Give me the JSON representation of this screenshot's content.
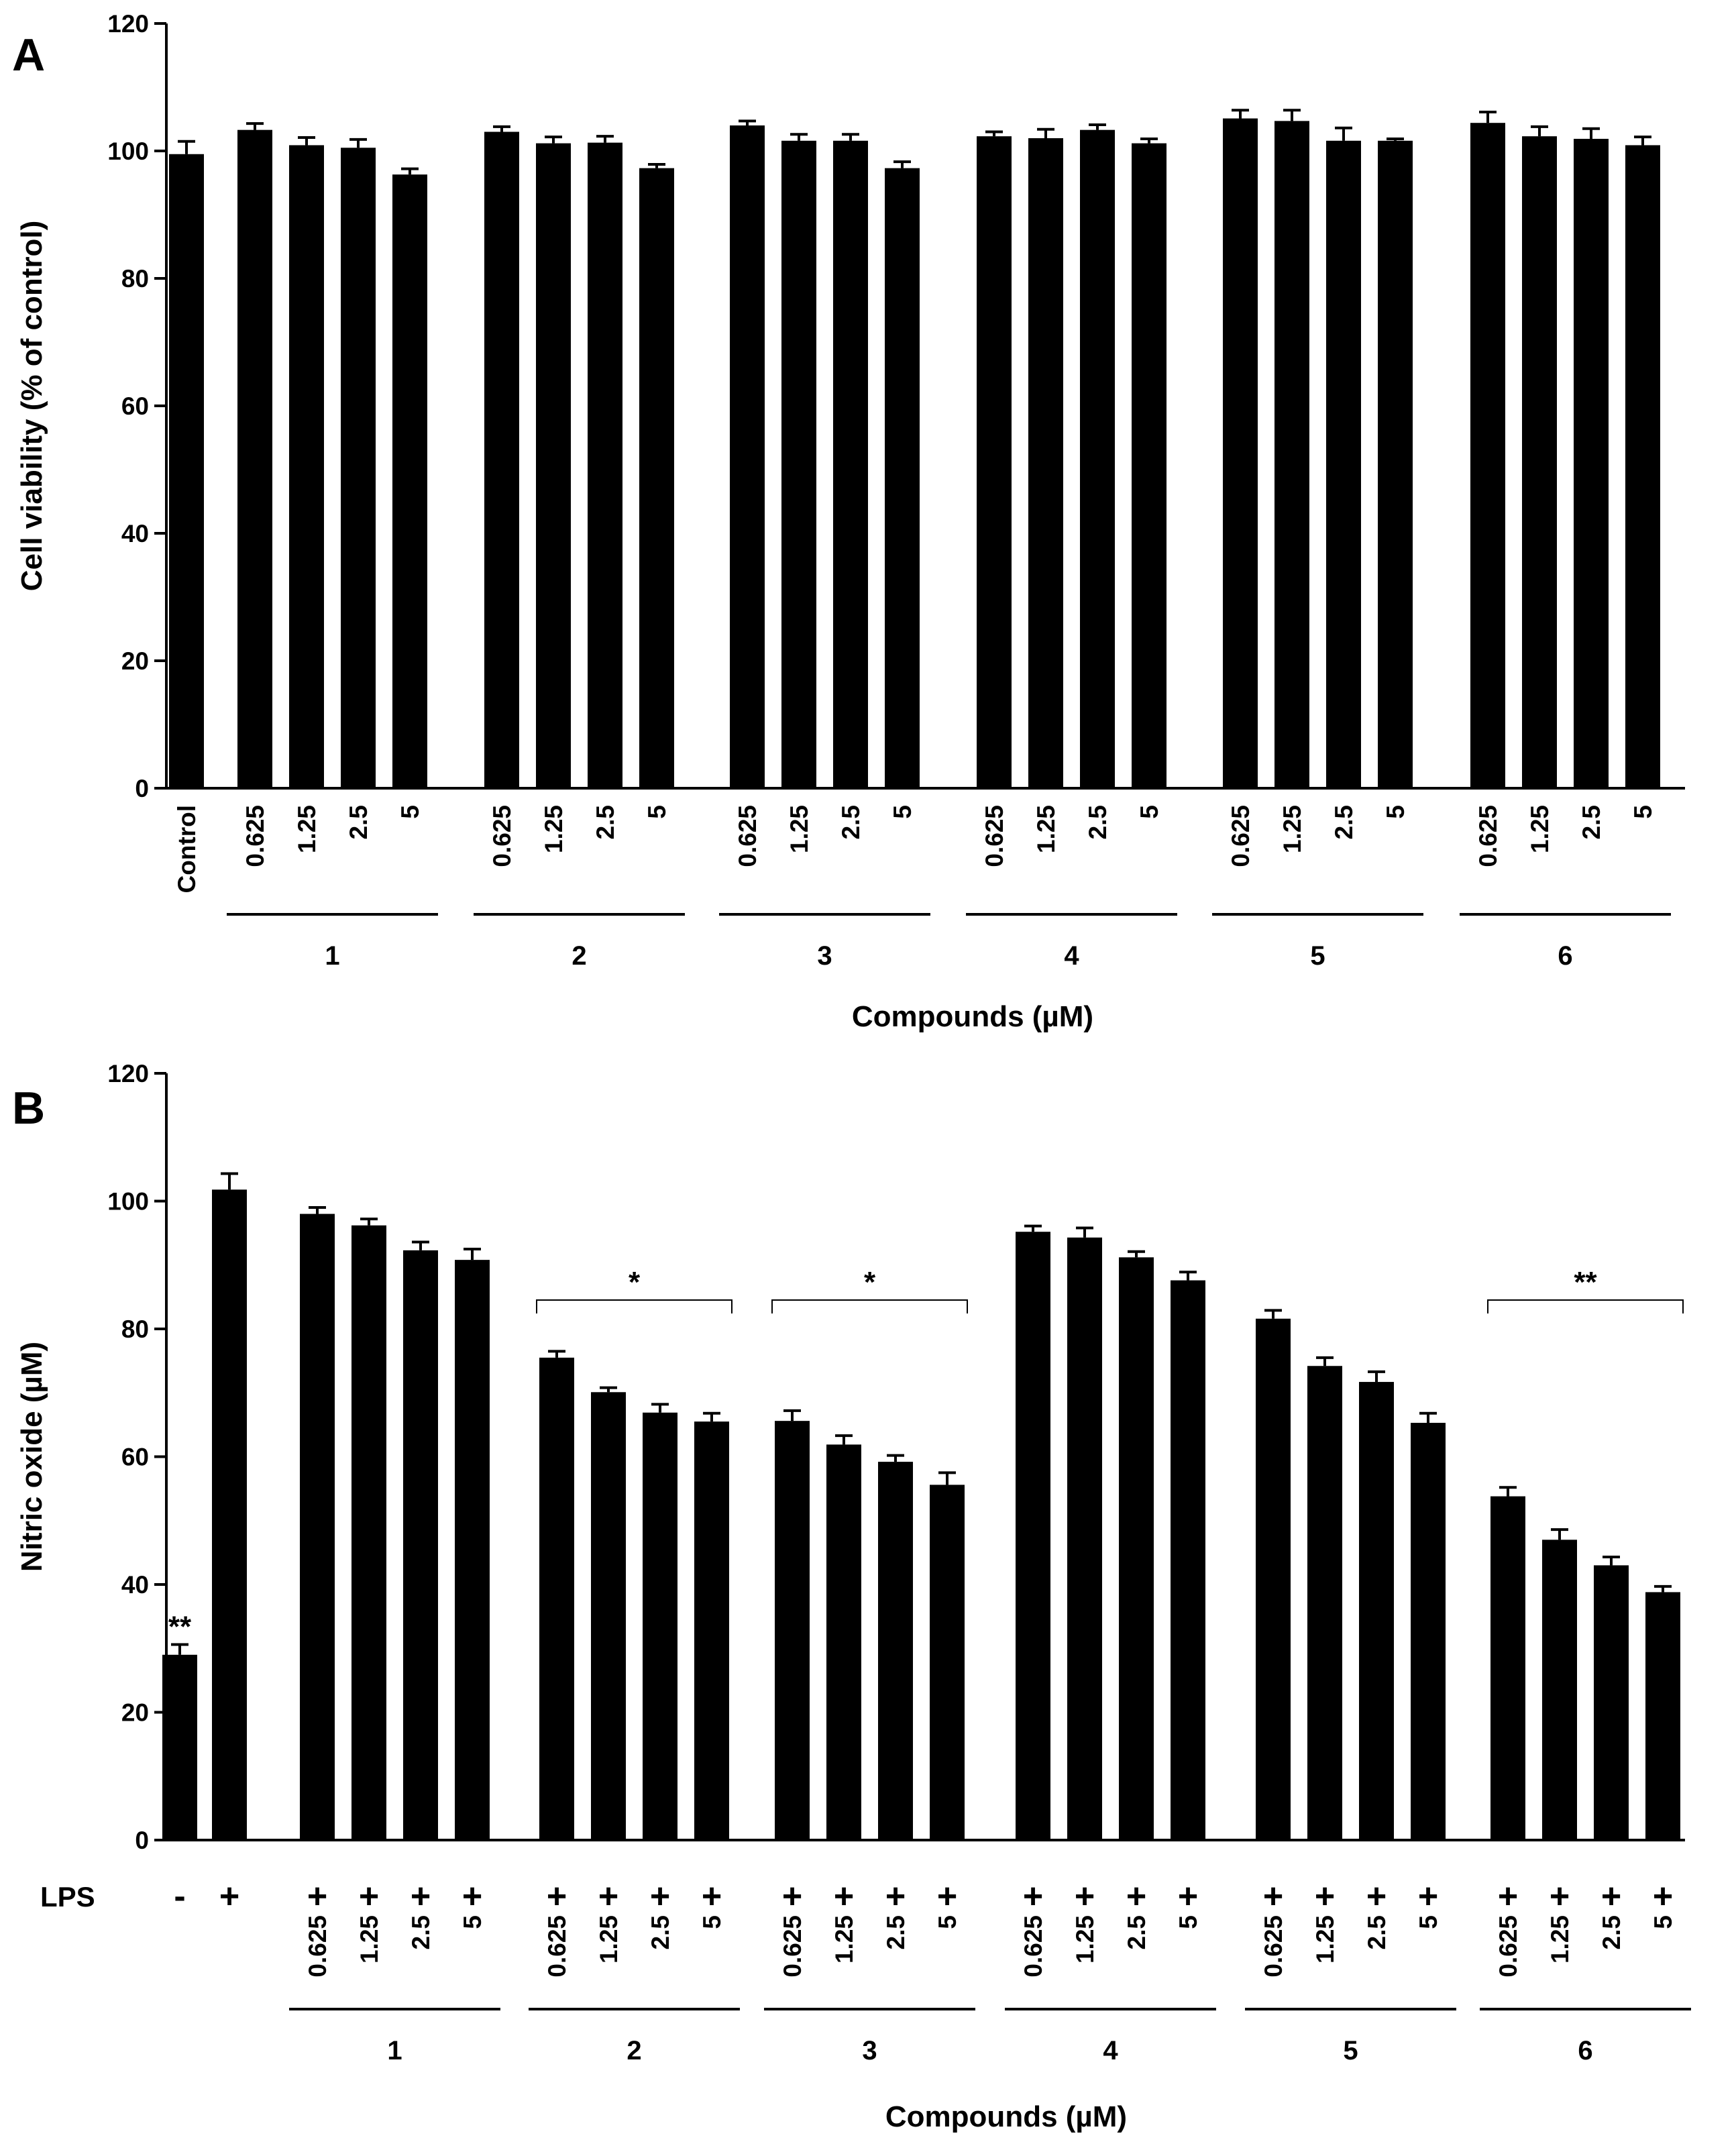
{
  "chart_data": [
    {
      "panel": "A",
      "type": "bar",
      "title": "",
      "xlabel": "Compounds (µM)",
      "ylabel": "Cell viability (% of control)",
      "ylim": [
        0,
        120
      ],
      "yticks": [
        "0",
        "20",
        "40",
        "60",
        "80",
        "100",
        "120"
      ],
      "grid": false,
      "legend": "none",
      "error_bars": "SEM, upper only",
      "control_label": "Control",
      "group_names": [
        "1",
        "2",
        "3",
        "4",
        "5",
        "6"
      ],
      "concentrations": [
        "0.625",
        "1.25",
        "2.5",
        "5"
      ],
      "control": {
        "value": 99.5,
        "error": 2.0
      },
      "groups": [
        {
          "name": "1",
          "values": [
            103.3,
            100.9,
            100.5,
            96.3
          ],
          "errors": [
            1.0,
            1.2,
            1.3,
            0.9
          ]
        },
        {
          "name": "2",
          "values": [
            103.0,
            101.2,
            101.3,
            97.3
          ],
          "errors": [
            0.8,
            1.0,
            1.0,
            0.6
          ]
        },
        {
          "name": "3",
          "values": [
            104.0,
            101.6,
            101.6,
            97.3
          ],
          "errors": [
            0.7,
            1.0,
            1.0,
            1.0
          ]
        },
        {
          "name": "4",
          "values": [
            102.3,
            102.0,
            103.3,
            101.2
          ],
          "errors": [
            0.7,
            1.4,
            0.8,
            0.7
          ]
        },
        {
          "name": "5",
          "values": [
            105.1,
            104.7,
            101.6,
            101.6
          ],
          "errors": [
            1.3,
            1.7,
            2.0,
            0.3
          ]
        },
        {
          "name": "6",
          "values": [
            104.4,
            102.3,
            101.9,
            100.9
          ],
          "errors": [
            1.7,
            1.5,
            1.6,
            1.3
          ]
        }
      ]
    },
    {
      "panel": "B",
      "type": "bar",
      "title": "",
      "xlabel": "Compounds (µM)",
      "ylabel": "Nitric oxide (µM)",
      "ylim": [
        0,
        120
      ],
      "yticks": [
        "0",
        "20",
        "40",
        "60",
        "80",
        "100",
        "120"
      ],
      "grid": false,
      "legend": "none",
      "error_bars": "SEM, upper only",
      "row_label": "LPS",
      "minus_label": "-",
      "plus_label": "+",
      "group_names": [
        "1",
        "2",
        "3",
        "4",
        "5",
        "6"
      ],
      "concentrations": [
        "0.625",
        "1.25",
        "2.5",
        "5"
      ],
      "lps_negative": {
        "value": 29.0,
        "error": 1.6,
        "significance": "**"
      },
      "lps_positive": {
        "value": 101.8,
        "error": 2.5,
        "significance": ""
      },
      "groups": [
        {
          "name": "1",
          "values": [
            98.0,
            96.2,
            92.3,
            90.8
          ],
          "errors": [
            1.0,
            1.0,
            1.3,
            1.7
          ],
          "significance": ""
        },
        {
          "name": "2",
          "values": [
            75.5,
            70.1,
            66.9,
            65.5
          ],
          "errors": [
            1.0,
            0.7,
            1.3,
            1.3
          ],
          "significance": "*"
        },
        {
          "name": "3",
          "values": [
            65.6,
            61.9,
            59.2,
            55.6
          ],
          "errors": [
            1.6,
            1.4,
            1.0,
            1.9
          ],
          "significance": "*"
        },
        {
          "name": "4",
          "values": [
            95.2,
            94.3,
            91.2,
            87.6
          ],
          "errors": [
            0.9,
            1.5,
            0.9,
            1.3
          ],
          "significance": ""
        },
        {
          "name": "5",
          "values": [
            81.6,
            74.2,
            71.7,
            65.3
          ],
          "errors": [
            1.3,
            1.3,
            1.6,
            1.5
          ],
          "significance": ""
        },
        {
          "name": "6",
          "values": [
            53.8,
            47.0,
            43.0,
            38.8
          ],
          "errors": [
            1.4,
            1.6,
            1.3,
            0.9
          ],
          "significance": "**"
        }
      ]
    }
  ]
}
